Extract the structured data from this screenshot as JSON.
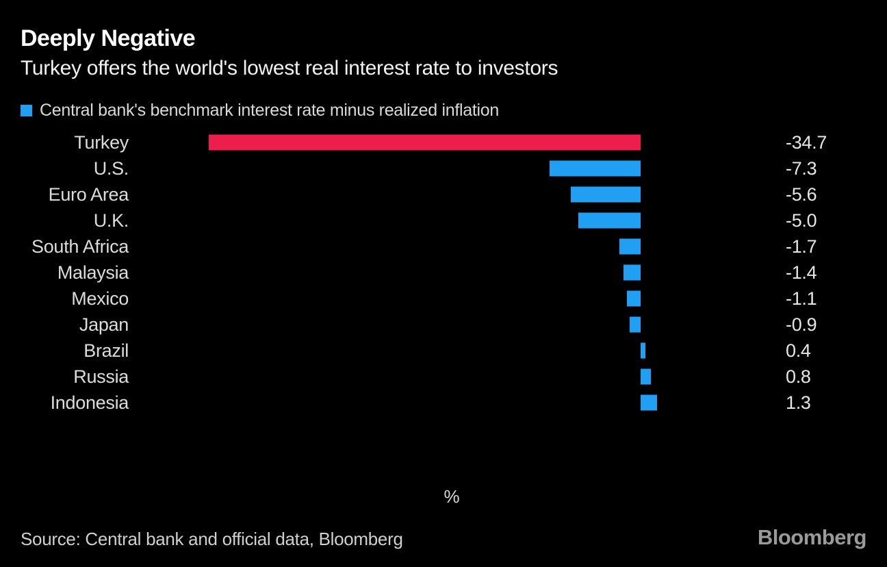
{
  "header": {
    "title": "Deeply Negative",
    "subtitle": "Turkey offers the world's lowest real interest rate to investors"
  },
  "legend": {
    "label": "Central bank's benchmark interest rate minus realized inflation",
    "swatch_color": "#219ff3"
  },
  "chart_data": {
    "type": "bar",
    "orientation": "horizontal",
    "title": "Deeply Negative",
    "subtitle": "Turkey offers the world's lowest real interest rate to investors",
    "series_label": "Central bank's benchmark interest rate minus realized inflation",
    "categories": [
      "Turkey",
      "U.S.",
      "Euro Area",
      "U.K.",
      "South Africa",
      "Malaysia",
      "Mexico",
      "Japan",
      "Brazil",
      "Russia",
      "Indonesia"
    ],
    "values": [
      -34.7,
      -7.3,
      -5.6,
      -5.0,
      -1.7,
      -1.4,
      -1.1,
      -0.9,
      0.4,
      0.8,
      1.3
    ],
    "value_labels": [
      "-34.7",
      "-7.3",
      "-5.6",
      "-5.0",
      "-1.7",
      "-1.4",
      "-1.1",
      "-0.9",
      "0.4",
      "0.8",
      "1.3"
    ],
    "xlabel": "%",
    "ylabel": "",
    "xlim": [
      -40,
      7.5
    ],
    "grid": false,
    "legend_position": "top-left",
    "bar_color_default": "#219ff3",
    "bar_color_highlight": "#ed1e4c",
    "highlight_category": "Turkey",
    "background_color": "#000000"
  },
  "axis": {
    "unit_label": "%"
  },
  "footer": {
    "source": "Source: Central bank and official data, Bloomberg",
    "logo_text": "Bloomberg"
  },
  "colors": {
    "background": "#000000",
    "text_primary": "#ffffff",
    "text_secondary": "#dcdcdc",
    "logo_gray": "#9a9a9a"
  }
}
